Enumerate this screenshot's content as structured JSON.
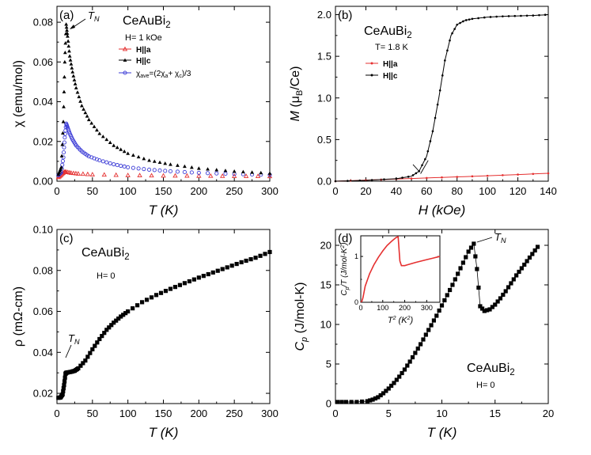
{
  "chart_data": [
    {
      "id": "a",
      "type": "scatter",
      "panel_label": "(a)",
      "title": "CeAuBi",
      "title_sub": "2",
      "annotation": "H= 1 kOe",
      "peak_label": "T",
      "peak_label_sub": "N",
      "xlabel": "T",
      "xlabel_unit": "(K)",
      "ylabel": "χ (emu/mol)",
      "xlim": [
        0,
        300
      ],
      "ylim": [
        0,
        0.088
      ],
      "xticks": [
        "0",
        "50",
        "100",
        "150",
        "200",
        "250",
        "300"
      ],
      "yticks": [
        "0.00",
        "0.02",
        "0.04",
        "0.06",
        "0.08"
      ],
      "legend": [
        "H||a",
        "H||c",
        "χave=(2χa+ χc)/3"
      ],
      "series": [
        {
          "name": "H||a",
          "color": "#e53030",
          "marker": "open-triangle",
          "x": [
            2,
            6,
            10,
            13,
            20,
            30,
            50,
            100,
            150,
            200,
            250,
            300
          ],
          "y": [
            0.002,
            0.0032,
            0.0046,
            0.0047,
            0.0042,
            0.0038,
            0.0034,
            0.003,
            0.0028,
            0.0027,
            0.0026,
            0.0025
          ]
        },
        {
          "name": "H||c",
          "color": "#000000",
          "marker": "filled-triangle",
          "x": [
            2,
            6,
            9,
            11,
            13,
            15,
            18,
            22,
            27,
            35,
            45,
            60,
            80,
            100,
            130,
            160,
            200,
            250,
            300
          ],
          "y": [
            0.0035,
            0.007,
            0.03,
            0.06,
            0.079,
            0.073,
            0.063,
            0.055,
            0.047,
            0.038,
            0.031,
            0.024,
            0.018,
            0.014,
            0.0105,
            0.0085,
            0.0065,
            0.005,
            0.004
          ]
        },
        {
          "name": "χave=(2χa+ χc)/3",
          "color": "#3b3bd6",
          "marker": "open-circle",
          "x": [
            2,
            6,
            9,
            11,
            13,
            15,
            18,
            22,
            27,
            35,
            45,
            60,
            80,
            100,
            130,
            160,
            200,
            250,
            300
          ],
          "y": [
            0.003,
            0.0045,
            0.012,
            0.022,
            0.029,
            0.027,
            0.024,
            0.021,
            0.018,
            0.015,
            0.0125,
            0.0105,
            0.0085,
            0.007,
            0.0058,
            0.005,
            0.0042,
            0.0036,
            0.0032
          ]
        }
      ]
    },
    {
      "id": "b",
      "type": "line",
      "panel_label": "(b)",
      "title": "CeAuBi",
      "title_sub": "2",
      "annotation": "T= 1.8 K",
      "xlabel": "H",
      "xlabel_unit": "(kOe)",
      "ylabel": "M (μB/Ce)",
      "xlim": [
        0,
        140
      ],
      "ylim": [
        0,
        2.1
      ],
      "xticks": [
        "0",
        "20",
        "40",
        "60",
        "80",
        "100",
        "120",
        "140"
      ],
      "yticks": [
        "0.0",
        "0.5",
        "1.0",
        "1.5",
        "2.0"
      ],
      "legend": [
        "H||a",
        "H||c"
      ],
      "series": [
        {
          "name": "H||a",
          "color": "#e53030",
          "x": [
            0,
            20,
            40,
            60,
            80,
            100,
            120,
            140
          ],
          "y": [
            0,
            0.013,
            0.026,
            0.039,
            0.052,
            0.065,
            0.08,
            0.095
          ]
        },
        {
          "name": "H||c",
          "color": "#000000",
          "x": [
            0,
            20,
            40,
            50,
            55,
            60,
            64,
            68,
            72,
            76,
            80,
            85,
            90,
            100,
            110,
            120,
            130,
            140
          ],
          "y": [
            0,
            0.01,
            0.03,
            0.06,
            0.12,
            0.3,
            0.6,
            1.0,
            1.45,
            1.75,
            1.88,
            1.93,
            1.95,
            1.97,
            1.98,
            1.985,
            1.99,
            2.0
          ]
        }
      ]
    },
    {
      "id": "c",
      "type": "scatter",
      "panel_label": "(c)",
      "title": "CeAuBi",
      "title_sub": "2",
      "annotation": "H= 0",
      "peak_label": "T",
      "peak_label_sub": "N",
      "xlabel": "T",
      "xlabel_unit": "(K)",
      "ylabel": "ρ (mΩ-cm)",
      "xlim": [
        0,
        300
      ],
      "ylim": [
        0.015,
        0.1
      ],
      "xticks": [
        "0",
        "50",
        "100",
        "150",
        "200",
        "250",
        "300"
      ],
      "yticks": [
        "0.02",
        "0.04",
        "0.06",
        "0.08",
        "0.10"
      ],
      "series": [
        {
          "name": "",
          "color": "#000000",
          "marker": "filled-square",
          "x": [
            2,
            5,
            8,
            10,
            12,
            13,
            15,
            20,
            25,
            30,
            40,
            50,
            60,
            70,
            80,
            90,
            100,
            120,
            140,
            160,
            180,
            200,
            220,
            240,
            260,
            280,
            300
          ],
          "y": [
            0.0178,
            0.018,
            0.0195,
            0.024,
            0.0295,
            0.03,
            0.0302,
            0.0305,
            0.031,
            0.0322,
            0.036,
            0.0415,
            0.0465,
            0.051,
            0.0545,
            0.0575,
            0.06,
            0.0645,
            0.068,
            0.071,
            0.0738,
            0.0765,
            0.079,
            0.0815,
            0.084,
            0.0862,
            0.089
          ]
        }
      ]
    },
    {
      "id": "d",
      "type": "scatter",
      "panel_label": "(d)",
      "title": "CeAuBi",
      "title_sub": "2",
      "annotation": "H= 0",
      "peak_label": "T",
      "peak_label_sub": "N",
      "xlabel": "T",
      "xlabel_unit": "(K)",
      "ylabel": "Cp (J/mol-K)",
      "xlim": [
        0,
        20
      ],
      "ylim": [
        0,
        22
      ],
      "xticks": [
        "0",
        "5",
        "10",
        "15",
        "20"
      ],
      "yticks": [
        "0",
        "5",
        "10",
        "15",
        "20"
      ],
      "series": [
        {
          "name": "",
          "color": "#000000",
          "marker": "filled-square",
          "x": [
            0.2,
            1,
            2,
            3,
            3.5,
            4,
            4.5,
            5,
            5.5,
            6,
            6.5,
            7,
            7.5,
            8,
            8.5,
            9,
            9.5,
            10,
            10.5,
            11,
            11.5,
            12,
            12.5,
            13,
            13.3,
            13.6,
            14,
            14.5,
            15,
            15.5,
            16,
            16.5,
            17,
            17.5,
            18,
            18.5,
            19
          ],
          "y": [
            0.2,
            0.2,
            0.2,
            0.3,
            0.5,
            0.8,
            1.3,
            1.9,
            2.6,
            3.4,
            4.3,
            5.3,
            6.4,
            7.5,
            8.7,
            9.9,
            11.1,
            12.4,
            13.7,
            15.0,
            16.4,
            17.8,
            19.2,
            20.2,
            17.0,
            12.3,
            11.7,
            11.9,
            12.5,
            13.3,
            14.2,
            15.2,
            16.2,
            17.1,
            18.0,
            18.9,
            19.8
          ]
        }
      ],
      "inset": {
        "type": "line",
        "xlabel": "T2 (K2)",
        "ylabel": "Cp/T (J/mol-K2)",
        "xlim": [
          0,
          360
        ],
        "ylim": [
          0,
          1.45
        ],
        "xticks": [
          "0",
          "100",
          "200",
          "300"
        ],
        "yticks": [
          "0",
          "1"
        ],
        "series": [
          {
            "name": "",
            "color": "#e53030",
            "x": [
              0,
              5,
              10,
              20,
              40,
              60,
              80,
              100,
              120,
              140,
              160,
              170,
              172,
              178,
              185,
              200,
              250,
              300,
              360
            ],
            "y": [
              0.01,
              0.02,
              0.1,
              0.35,
              0.62,
              0.82,
              0.98,
              1.12,
              1.24,
              1.33,
              1.41,
              1.43,
              1.3,
              0.9,
              0.8,
              0.8,
              0.87,
              0.93,
              1.0
            ]
          }
        ]
      }
    }
  ]
}
